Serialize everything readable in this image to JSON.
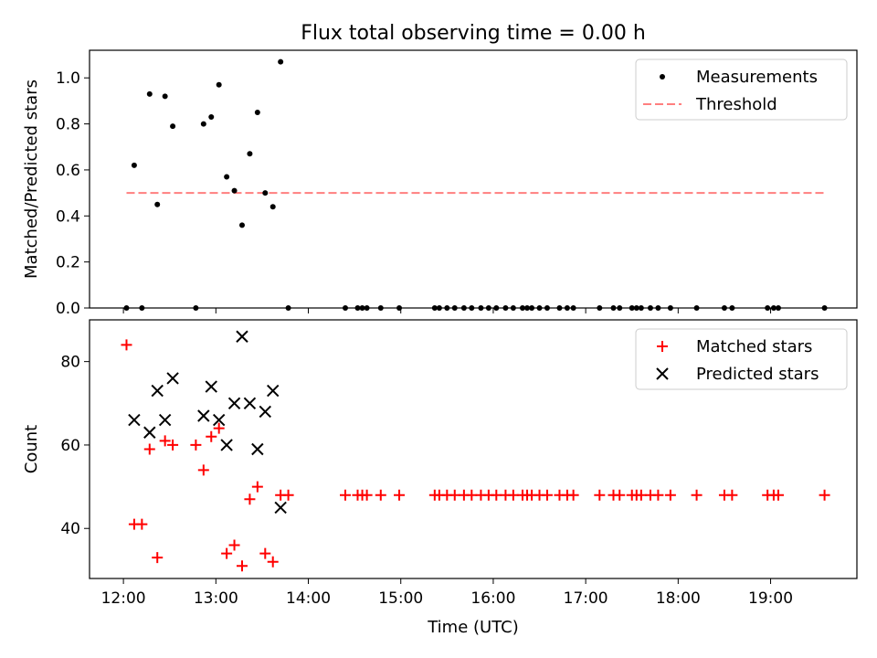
{
  "figure": {
    "title": "Flux total observing time = 0.00 h",
    "xlabel": "Time (UTC)",
    "x_ticks": [
      "12:00",
      "13:00",
      "14:00",
      "15:00",
      "16:00",
      "17:00",
      "18:00",
      "19:00"
    ]
  },
  "chart_data": [
    {
      "type": "scatter",
      "ylabel": "Matched/Predicted stars",
      "xlim": [
        "11:38",
        "19:56"
      ],
      "ylim": [
        0,
        1.12
      ],
      "y_ticks": [
        "0.0",
        "0.2",
        "0.4",
        "0.6",
        "0.8",
        "1.0"
      ],
      "legend": {
        "placement": "top-right",
        "entries": [
          "Measurements",
          "Threshold"
        ]
      },
      "threshold": {
        "value": 0.5,
        "x_range": [
          "12:02",
          "19:35"
        ],
        "color": "#ff7f7f"
      },
      "series": [
        {
          "name": "Measurements",
          "color": "#000000",
          "points": [
            [
              "12:02",
              0.0
            ],
            [
              "12:07",
              0.62
            ],
            [
              "12:12",
              0.0
            ],
            [
              "12:17",
              0.93
            ],
            [
              "12:22",
              0.45
            ],
            [
              "12:27",
              0.92
            ],
            [
              "12:32",
              0.79
            ],
            [
              "12:47",
              0.0
            ],
            [
              "12:52",
              0.8
            ],
            [
              "12:57",
              0.83
            ],
            [
              "13:02",
              0.97
            ],
            [
              "13:07",
              0.57
            ],
            [
              "13:12",
              0.51
            ],
            [
              "13:17",
              0.36
            ],
            [
              "13:22",
              0.67
            ],
            [
              "13:27",
              0.85
            ],
            [
              "13:32",
              0.5
            ],
            [
              "13:37",
              0.44
            ],
            [
              "13:42",
              1.07
            ],
            [
              "13:47",
              0.0
            ],
            [
              "14:24",
              0.0
            ],
            [
              "14:32",
              0.0
            ],
            [
              "14:35",
              0.0
            ],
            [
              "14:38",
              0.0
            ],
            [
              "14:47",
              0.0
            ],
            [
              "14:59",
              0.0
            ],
            [
              "15:22",
              0.0
            ],
            [
              "15:25",
              0.0
            ],
            [
              "15:30",
              0.0
            ],
            [
              "15:35",
              0.0
            ],
            [
              "15:41",
              0.0
            ],
            [
              "15:46",
              0.0
            ],
            [
              "15:52",
              0.0
            ],
            [
              "15:57",
              0.0
            ],
            [
              "16:02",
              0.0
            ],
            [
              "16:08",
              0.0
            ],
            [
              "16:13",
              0.0
            ],
            [
              "16:19",
              0.0
            ],
            [
              "16:22",
              0.0
            ],
            [
              "16:25",
              0.0
            ],
            [
              "16:30",
              0.0
            ],
            [
              "16:35",
              0.0
            ],
            [
              "16:43",
              0.0
            ],
            [
              "16:48",
              0.0
            ],
            [
              "16:52",
              0.0
            ],
            [
              "17:09",
              0.0
            ],
            [
              "17:18",
              0.0
            ],
            [
              "17:22",
              0.0
            ],
            [
              "17:30",
              0.0
            ],
            [
              "17:33",
              0.0
            ],
            [
              "17:36",
              0.0
            ],
            [
              "17:42",
              0.0
            ],
            [
              "17:47",
              0.0
            ],
            [
              "17:55",
              0.0
            ],
            [
              "18:12",
              0.0
            ],
            [
              "18:30",
              0.0
            ],
            [
              "18:35",
              0.0
            ],
            [
              "18:58",
              0.0
            ],
            [
              "19:02",
              0.0
            ],
            [
              "19:05",
              0.0
            ],
            [
              "19:35",
              0.0
            ]
          ]
        }
      ]
    },
    {
      "type": "scatter",
      "ylabel": "Count",
      "xlim": [
        "11:38",
        "19:56"
      ],
      "ylim": [
        28,
        90
      ],
      "y_ticks": [
        "40",
        "60",
        "80"
      ],
      "legend": {
        "placement": "top-right",
        "entries": [
          "Matched stars",
          "Predicted stars"
        ]
      },
      "series": [
        {
          "name": "Matched stars",
          "marker": "plus",
          "color": "#ff0000",
          "points": [
            [
              "12:02",
              84
            ],
            [
              "12:07",
              41
            ],
            [
              "12:12",
              41
            ],
            [
              "12:17",
              59
            ],
            [
              "12:22",
              33
            ],
            [
              "12:27",
              61
            ],
            [
              "12:32",
              60
            ],
            [
              "12:47",
              60
            ],
            [
              "12:52",
              54
            ],
            [
              "12:57",
              62
            ],
            [
              "13:02",
              64
            ],
            [
              "13:07",
              34
            ],
            [
              "13:12",
              36
            ],
            [
              "13:17",
              31
            ],
            [
              "13:22",
              47
            ],
            [
              "13:27",
              50
            ],
            [
              "13:32",
              34
            ],
            [
              "13:37",
              32
            ],
            [
              "13:42",
              48
            ],
            [
              "13:47",
              48
            ],
            [
              "14:24",
              48
            ],
            [
              "14:32",
              48
            ],
            [
              "14:35",
              48
            ],
            [
              "14:38",
              48
            ],
            [
              "14:47",
              48
            ],
            [
              "14:59",
              48
            ],
            [
              "15:22",
              48
            ],
            [
              "15:25",
              48
            ],
            [
              "15:30",
              48
            ],
            [
              "15:35",
              48
            ],
            [
              "15:41",
              48
            ],
            [
              "15:46",
              48
            ],
            [
              "15:52",
              48
            ],
            [
              "15:57",
              48
            ],
            [
              "16:02",
              48
            ],
            [
              "16:08",
              48
            ],
            [
              "16:13",
              48
            ],
            [
              "16:19",
              48
            ],
            [
              "16:22",
              48
            ],
            [
              "16:25",
              48
            ],
            [
              "16:30",
              48
            ],
            [
              "16:35",
              48
            ],
            [
              "16:43",
              48
            ],
            [
              "16:48",
              48
            ],
            [
              "16:52",
              48
            ],
            [
              "17:09",
              48
            ],
            [
              "17:18",
              48
            ],
            [
              "17:22",
              48
            ],
            [
              "17:30",
              48
            ],
            [
              "17:33",
              48
            ],
            [
              "17:36",
              48
            ],
            [
              "17:42",
              48
            ],
            [
              "17:47",
              48
            ],
            [
              "17:55",
              48
            ],
            [
              "18:12",
              48
            ],
            [
              "18:30",
              48
            ],
            [
              "18:35",
              48
            ],
            [
              "18:58",
              48
            ],
            [
              "19:02",
              48
            ],
            [
              "19:05",
              48
            ],
            [
              "19:35",
              48
            ]
          ]
        },
        {
          "name": "Predicted stars",
          "marker": "x",
          "color": "#000000",
          "points": [
            [
              "12:07",
              66
            ],
            [
              "12:17",
              63
            ],
            [
              "12:22",
              73
            ],
            [
              "12:27",
              66
            ],
            [
              "12:32",
              76
            ],
            [
              "12:52",
              67
            ],
            [
              "12:57",
              74
            ],
            [
              "13:02",
              66
            ],
            [
              "13:07",
              60
            ],
            [
              "13:12",
              70
            ],
            [
              "13:17",
              86
            ],
            [
              "13:22",
              70
            ],
            [
              "13:27",
              59
            ],
            [
              "13:32",
              68
            ],
            [
              "13:37",
              73
            ],
            [
              "13:42",
              45
            ]
          ]
        }
      ]
    }
  ]
}
